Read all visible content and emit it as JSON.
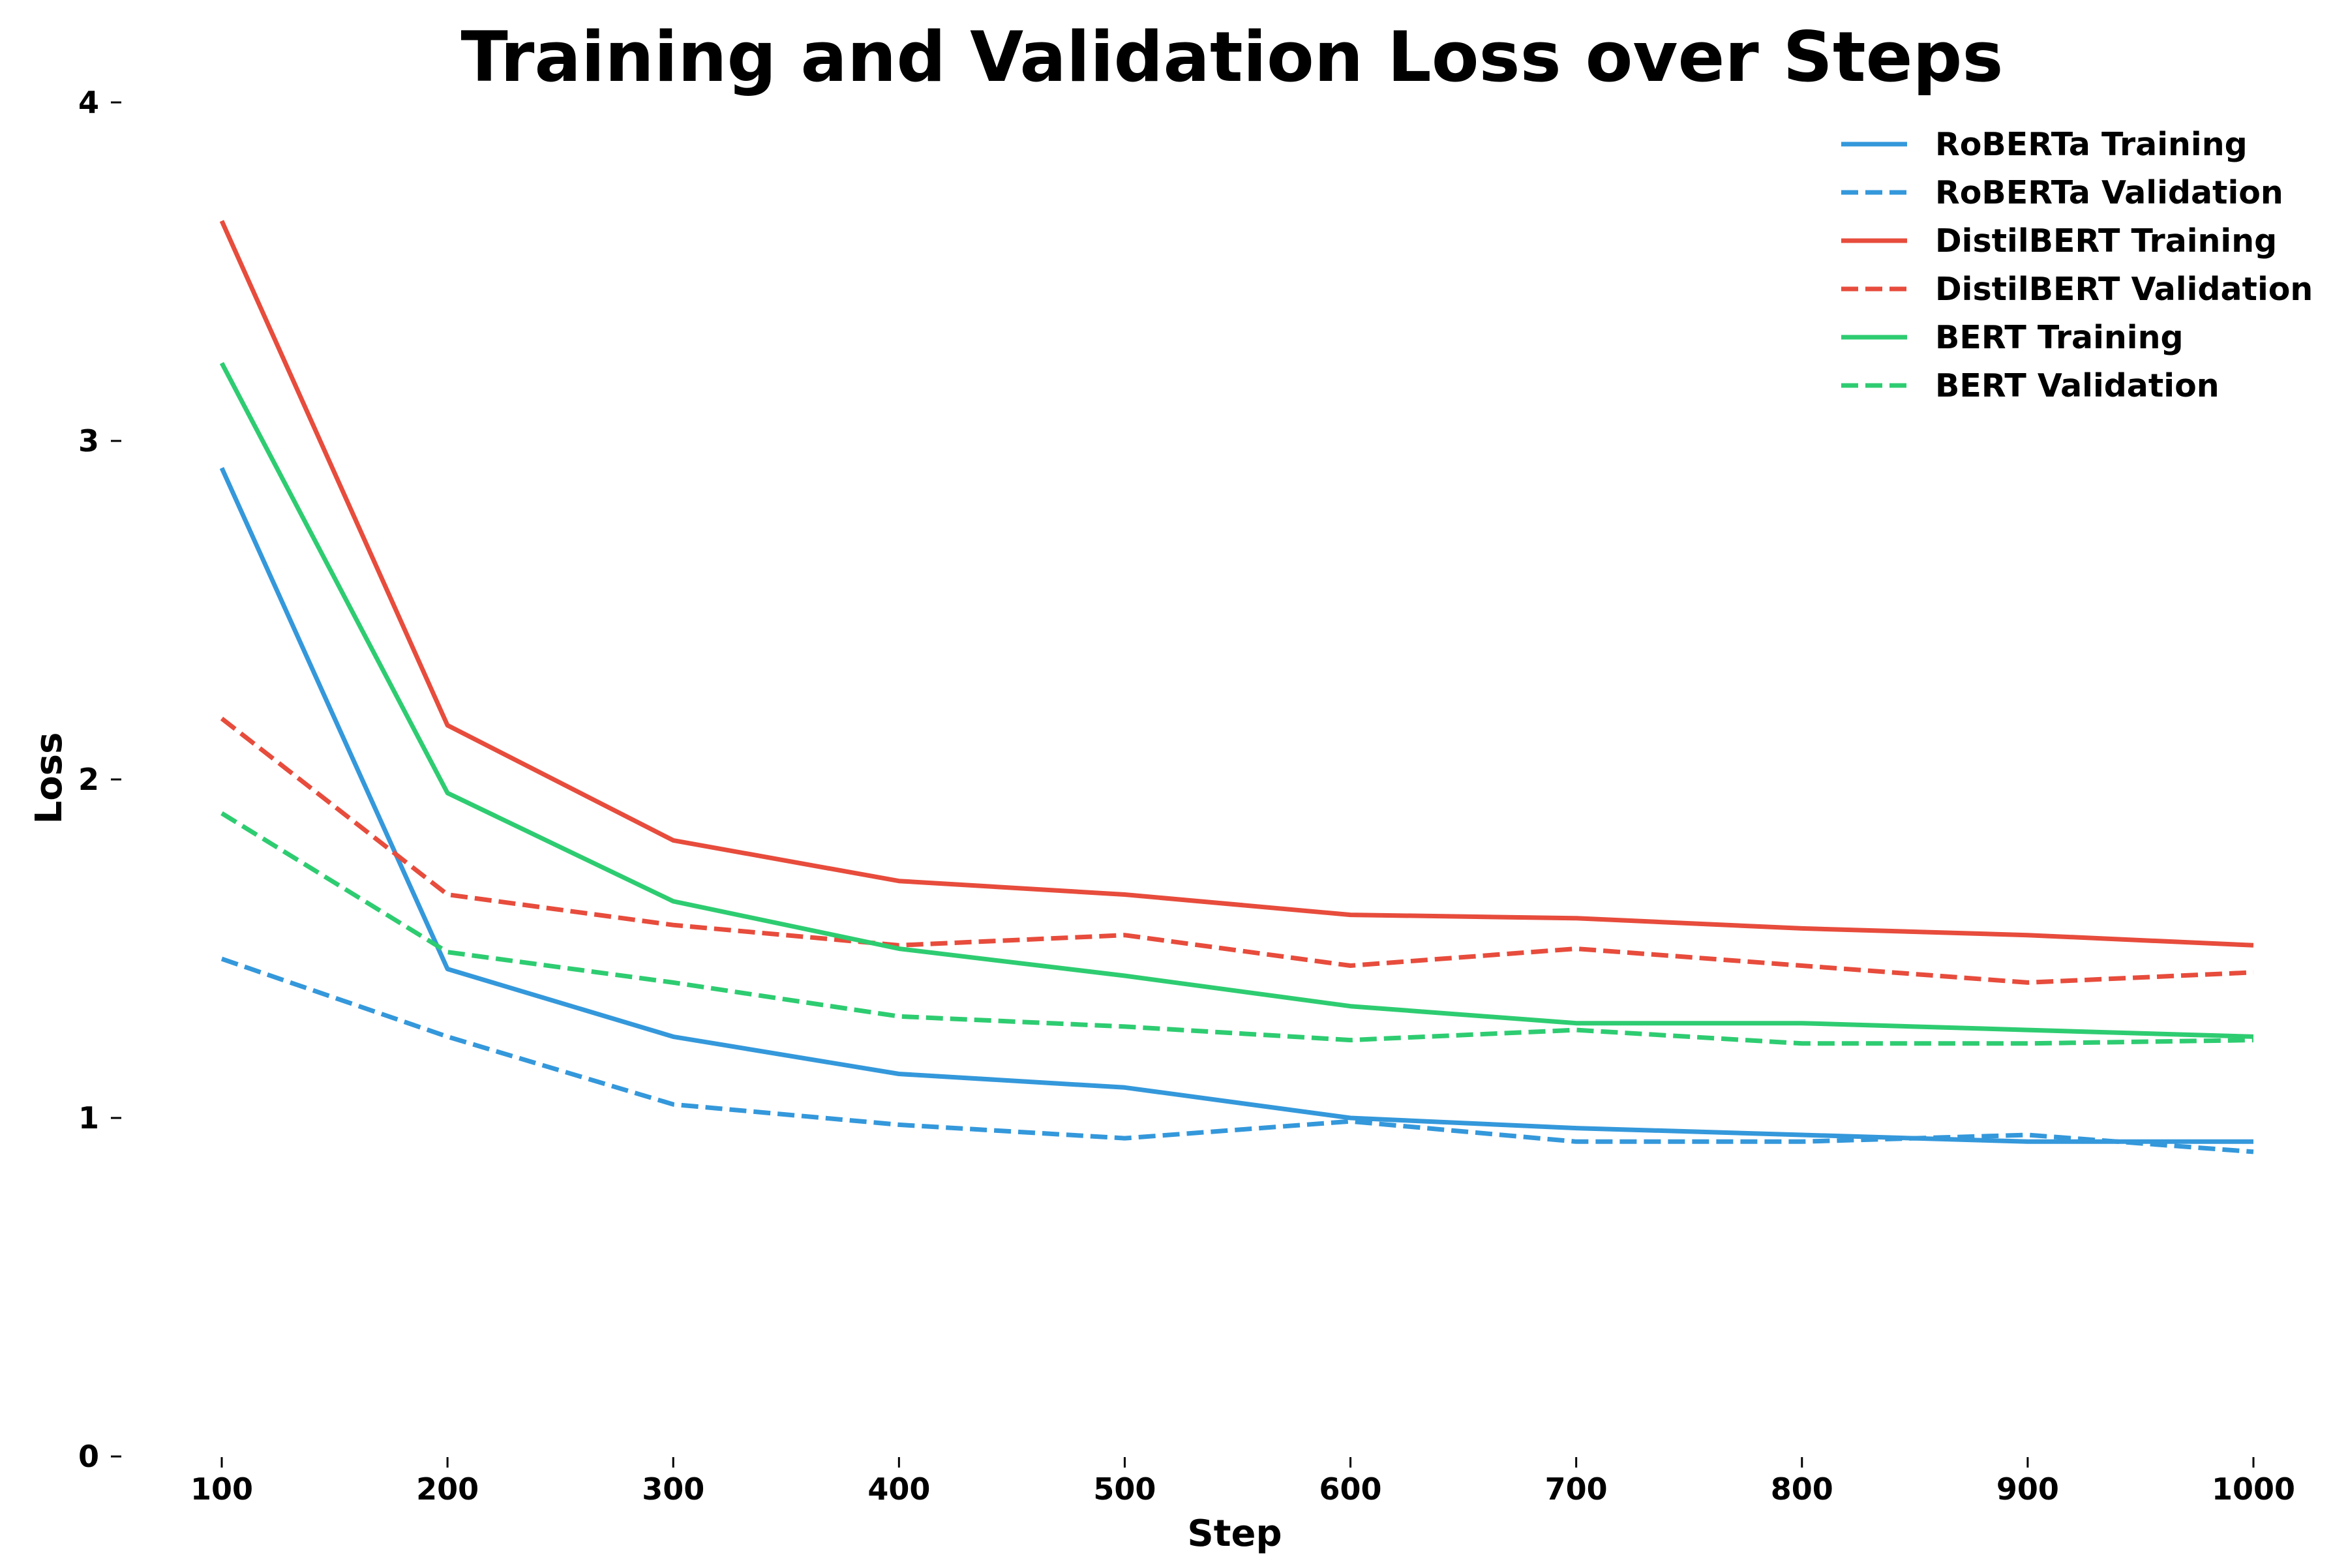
{
  "chart_data": {
    "type": "line",
    "title": "Training and Validation Loss over Steps",
    "xlabel": "Step",
    "ylabel": "Loss",
    "x": [
      100,
      200,
      300,
      400,
      500,
      600,
      700,
      800,
      900,
      1000
    ],
    "xlim": [
      55,
      1045
    ],
    "ylim": [
      0,
      4
    ],
    "xticks": [
      100,
      200,
      300,
      400,
      500,
      600,
      700,
      800,
      900,
      1000
    ],
    "yticks": [
      0,
      1,
      2,
      3,
      4
    ],
    "grid": false,
    "legend_position": "top-right",
    "series": [
      {
        "name": "RoBERTa Training",
        "color": "#3498db",
        "line_style": "solid",
        "values": [
          2.92,
          1.44,
          1.24,
          1.13,
          1.09,
          1.0,
          0.97,
          0.95,
          0.93,
          0.93
        ]
      },
      {
        "name": "RoBERTa Validation",
        "color": "#3498db",
        "line_style": "dashed",
        "values": [
          1.47,
          1.24,
          1.04,
          0.98,
          0.94,
          0.99,
          0.93,
          0.93,
          0.95,
          0.9
        ]
      },
      {
        "name": "DistilBERT Training",
        "color": "#e74c3c",
        "line_style": "solid",
        "values": [
          3.65,
          2.16,
          1.82,
          1.7,
          1.66,
          1.6,
          1.59,
          1.56,
          1.54,
          1.51
        ]
      },
      {
        "name": "DistilBERT Validation",
        "color": "#e74c3c",
        "line_style": "dashed",
        "values": [
          2.18,
          1.66,
          1.57,
          1.51,
          1.54,
          1.45,
          1.5,
          1.45,
          1.4,
          1.43
        ]
      },
      {
        "name": "BERT Training",
        "color": "#2ecc71",
        "line_style": "solid",
        "values": [
          3.23,
          1.96,
          1.64,
          1.5,
          1.42,
          1.33,
          1.28,
          1.28,
          1.26,
          1.24
        ]
      },
      {
        "name": "BERT Validation",
        "color": "#2ecc71",
        "line_style": "dashed",
        "values": [
          1.9,
          1.49,
          1.4,
          1.3,
          1.27,
          1.23,
          1.26,
          1.22,
          1.22,
          1.23
        ]
      }
    ]
  }
}
